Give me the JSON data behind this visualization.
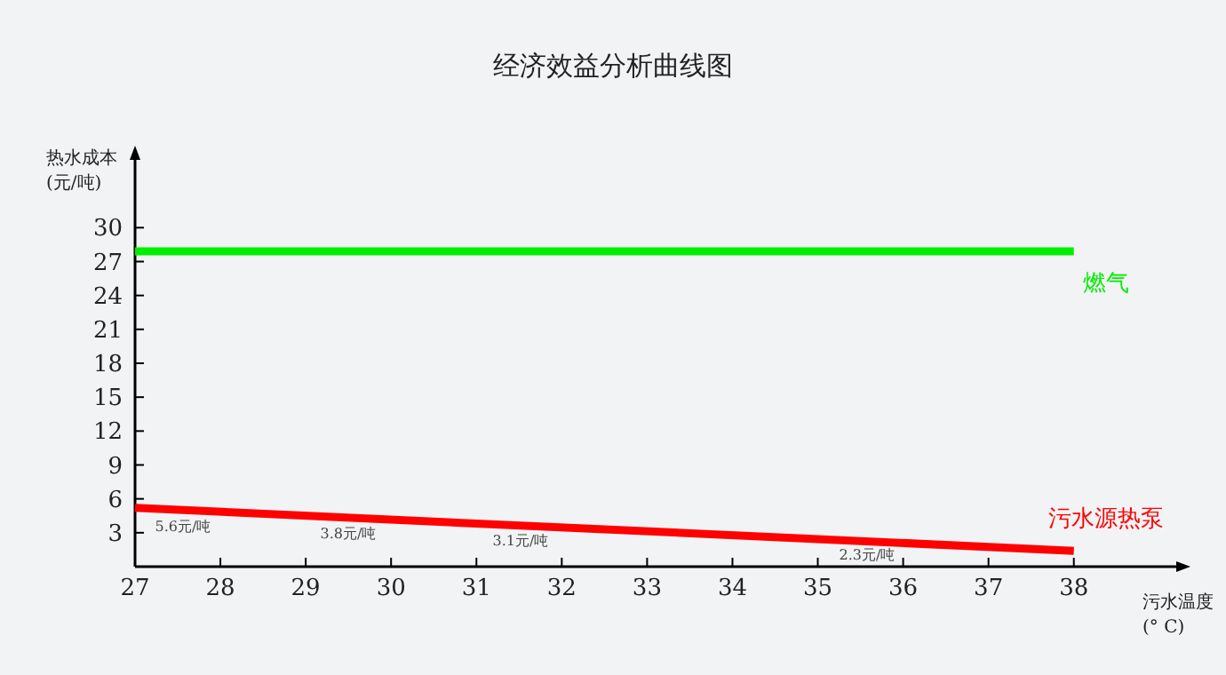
{
  "chart_data": {
    "type": "line",
    "title": "经济效益分析曲线图",
    "xlabel": "污水温度 (° C)",
    "ylabel": "热水成本 (元/吨)",
    "x": [
      27,
      38
    ],
    "series": [
      {
        "name": "燃气",
        "color": "#00ee00",
        "values": [
          27.9,
          27.9
        ]
      },
      {
        "name": "污水源热泵",
        "color": "#ff0000",
        "values": [
          5.2,
          1.4
        ]
      }
    ],
    "xlim": [
      27,
      39.2
    ],
    "xticks": [
      27,
      28,
      29,
      30,
      31,
      32,
      33,
      34,
      35,
      36,
      37,
      38
    ],
    "ylim": [
      0,
      36
    ],
    "yticks": [
      3,
      6,
      9,
      12,
      15,
      18,
      21,
      24,
      27,
      30
    ],
    "grid": false,
    "marker": "none",
    "line_style": "solid",
    "annotations": [
      "5.6元/吨",
      "3.8元/吨",
      "3.1元/吨",
      "2.3元/吨"
    ]
  }
}
